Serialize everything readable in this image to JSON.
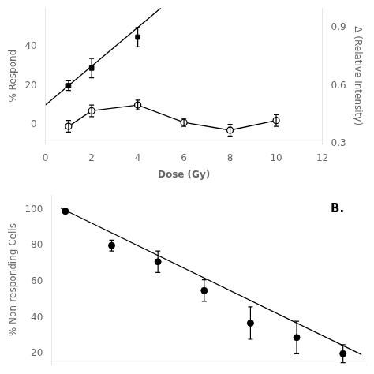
{
  "chart_data": [
    {
      "type": "scatter",
      "xlabel": "Dose (Gy)",
      "ylabel": "% Respond",
      "y2label": "Δ (Relative Intensity)",
      "xlim": [
        0,
        12
      ],
      "xticks": [
        0,
        2,
        4,
        6,
        8,
        10,
        12
      ],
      "ylim": [
        -10,
        60
      ],
      "yticks": [
        0,
        20,
        40
      ],
      "y2lim": [
        0.3,
        1.0
      ],
      "y2ticks": [
        0.3,
        0.6,
        0.9
      ],
      "grid": false,
      "series": [
        {
          "type": "line",
          "x": [
            0.0,
            5.0
          ],
          "values": [
            10.0,
            60.0
          ],
          "color": "#000000",
          "marker": "none",
          "line_style": "solid"
        },
        {
          "type": "scatter",
          "x": [
            1,
            2,
            4
          ],
          "values": [
            20,
            29,
            45
          ],
          "yerr": [
            2.5,
            5,
            5
          ],
          "color": "#000000",
          "marker": "square"
        },
        {
          "type": "line",
          "x": [
            1,
            2,
            4,
            6,
            8,
            10
          ],
          "values": [
            -1,
            7,
            10,
            1,
            -3,
            2
          ],
          "yerr": [
            3,
            3,
            2.5,
            2,
            3,
            3
          ],
          "color": "#000000",
          "marker": "open_circle",
          "line_style": "solid"
        }
      ]
    },
    {
      "type": "scatter",
      "annotation": "B.",
      "ylabel": "% Non-responding Cells",
      "xlim": [
        -0.3,
        6.5
      ],
      "ylim": [
        14,
        108
      ],
      "yticks": [
        20,
        40,
        60,
        80,
        100
      ],
      "tick_labels": "y",
      "grid": false,
      "series": [
        {
          "type": "line",
          "x": [
            -0.1,
            6.4
          ],
          "values": [
            100.75,
            19.5
          ],
          "color": "#000000",
          "marker": "none",
          "line_style": "solid"
        },
        {
          "type": "scatter",
          "x": [
            0,
            1,
            2,
            3,
            4,
            5,
            6
          ],
          "values": [
            99,
            80,
            71,
            55,
            37,
            29,
            20
          ],
          "yerr": [
            0,
            3,
            6,
            6,
            9,
            9,
            5
          ],
          "color": "#000000",
          "marker": "circle"
        }
      ]
    }
  ]
}
